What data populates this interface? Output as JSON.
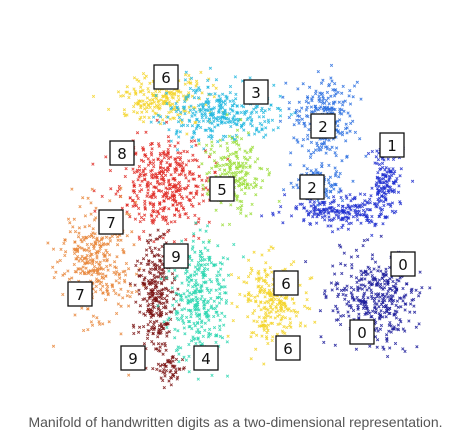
{
  "caption": "Manifold of handwritten digits as a two-dimensional representation.",
  "chart_data": {
    "type": "scatter",
    "title": "",
    "xlabel": "",
    "ylabel": "",
    "axes_visible": false,
    "grid": false,
    "legend": "none",
    "marker": "x",
    "clusters": [
      {
        "digit": "0",
        "color": "#1a1a9a"
      },
      {
        "digit": "1",
        "color": "#1f2fd0"
      },
      {
        "digit": "2",
        "color": "#2a6ee0"
      },
      {
        "digit": "3",
        "color": "#22b8e0"
      },
      {
        "digit": "4",
        "color": "#2ad6b0"
      },
      {
        "digit": "5",
        "color": "#9cde3a"
      },
      {
        "digit": "6",
        "color": "#f4d428"
      },
      {
        "digit": "7",
        "color": "#e8863a"
      },
      {
        "digit": "8",
        "color": "#e02a24"
      },
      {
        "digit": "9",
        "color": "#7a1212"
      }
    ],
    "annotations": [
      "6",
      "3",
      "2",
      "1",
      "8",
      "5",
      "2",
      "7",
      "9",
      "0",
      "6",
      "7",
      "0",
      "9",
      "4",
      "6"
    ]
  }
}
